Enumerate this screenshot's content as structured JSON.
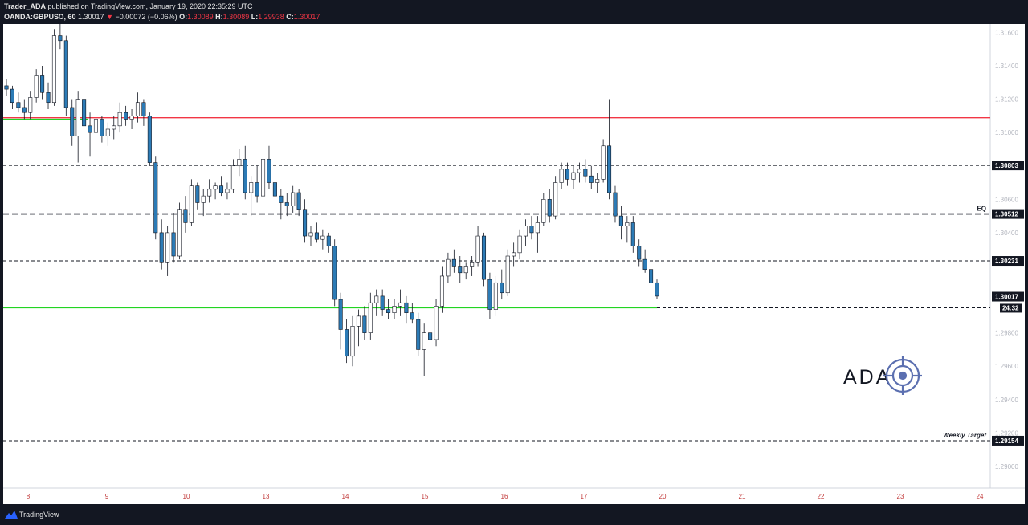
{
  "header": {
    "publisher": "Trader_ADA",
    "published_text": "published on TradingView.com, January 19, 2020 22:35:29 UTC",
    "symbol": "OANDA:GBPUSD, 60",
    "last": "1.30017",
    "arrow": "▼",
    "change": "−0.00072 (−0.06%)",
    "o_label": "O:",
    "o": "1.30089",
    "h_label": "H:",
    "h": "1.30089",
    "l_label": "L:",
    "l": "1.29938",
    "c_label": "C:",
    "c": "1.30017"
  },
  "footer": {
    "brand": "TradingView"
  },
  "logo_text": "ADA",
  "chart_data": {
    "type": "candlestick",
    "symbol": "OANDA:GBPUSD",
    "interval": "60",
    "ylim": [
      1.2887,
      1.3165
    ],
    "y_ticks": [
      1.316,
      1.314,
      1.312,
      1.31,
      1.306,
      1.304,
      1.298,
      1.296,
      1.294,
      1.292,
      1.29
    ],
    "y_tick_labels": [
      "1.31600",
      "1.31400",
      "1.31200",
      "1.31000",
      "1.30600",
      "1.30400",
      "1.29800",
      "1.29600",
      "1.29400",
      "1.29200",
      "1.29000"
    ],
    "x_ticks": [
      "8",
      "9",
      "10",
      "13",
      "14",
      "15",
      "16",
      "17",
      "20",
      "21",
      "22",
      "23",
      "24"
    ],
    "levels": [
      {
        "price": 1.31089,
        "color": "#f23645",
        "style": "solid",
        "label": "",
        "show_label": false
      },
      {
        "price": 1.30803,
        "color": "#131722",
        "style": "dashed",
        "label": "1.30803",
        "show_label": true
      },
      {
        "price": 1.30512,
        "color": "#131722",
        "style": "dashed-bold",
        "label": "1.30512",
        "show_label": true,
        "annotation": "EQ"
      },
      {
        "price": 1.30231,
        "color": "#131722",
        "style": "dashed",
        "label": "1.30231",
        "show_label": true
      },
      {
        "price": 1.29154,
        "color": "#131722",
        "style": "dashed",
        "label": "1.29154",
        "show_label": true,
        "annotation": "Weekly Target"
      }
    ],
    "current_price": {
      "price": 1.30017,
      "label": "1.30017",
      "countdown": "24:32"
    },
    "green_level": 1.2995,
    "candles": [
      [
        1.3128,
        1.3132,
        1.3122,
        1.3126
      ],
      [
        1.3126,
        1.3128,
        1.3114,
        1.3118
      ],
      [
        1.3118,
        1.3124,
        1.3112,
        1.3115
      ],
      [
        1.3115,
        1.312,
        1.3108,
        1.3112
      ],
      [
        1.3112,
        1.3125,
        1.3108,
        1.3121
      ],
      [
        1.3121,
        1.3138,
        1.3118,
        1.3134
      ],
      [
        1.3134,
        1.314,
        1.312,
        1.3124
      ],
      [
        1.3124,
        1.313,
        1.3114,
        1.3118
      ],
      [
        1.3118,
        1.3162,
        1.3116,
        1.3158
      ],
      [
        1.3158,
        1.317,
        1.315,
        1.3155
      ],
      [
        1.3155,
        1.3158,
        1.311,
        1.3115
      ],
      [
        1.3115,
        1.312,
        1.3092,
        1.3098
      ],
      [
        1.3098,
        1.3125,
        1.3082,
        1.312
      ],
      [
        1.312,
        1.3128,
        1.3095,
        1.3104
      ],
      [
        1.3104,
        1.3112,
        1.3086,
        1.31
      ],
      [
        1.31,
        1.3112,
        1.3094,
        1.3108
      ],
      [
        1.3108,
        1.311,
        1.3094,
        1.3098
      ],
      [
        1.3098,
        1.3106,
        1.3092,
        1.3102
      ],
      [
        1.3102,
        1.311,
        1.3096,
        1.3104
      ],
      [
        1.3104,
        1.3118,
        1.31,
        1.3112
      ],
      [
        1.3112,
        1.3116,
        1.3104,
        1.3108
      ],
      [
        1.3108,
        1.3114,
        1.3102,
        1.311
      ],
      [
        1.311,
        1.3124,
        1.3106,
        1.3118
      ],
      [
        1.3118,
        1.312,
        1.3104,
        1.311
      ],
      [
        1.311,
        1.3112,
        1.308,
        1.3082
      ],
      [
        1.3082,
        1.3086,
        1.3036,
        1.304
      ],
      [
        1.304,
        1.3048,
        1.3018,
        1.3022
      ],
      [
        1.3022,
        1.3044,
        1.3014,
        1.304
      ],
      [
        1.304,
        1.3052,
        1.3022,
        1.3026
      ],
      [
        1.3026,
        1.3058,
        1.3024,
        1.3054
      ],
      [
        1.3054,
        1.3062,
        1.304,
        1.3046
      ],
      [
        1.3046,
        1.3072,
        1.3044,
        1.3068
      ],
      [
        1.3068,
        1.307,
        1.3054,
        1.3058
      ],
      [
        1.3058,
        1.3066,
        1.305,
        1.3062
      ],
      [
        1.3062,
        1.3072,
        1.3058,
        1.3066
      ],
      [
        1.3066,
        1.307,
        1.306,
        1.3068
      ],
      [
        1.3068,
        1.3074,
        1.3062,
        1.3064
      ],
      [
        1.3064,
        1.307,
        1.306,
        1.3066
      ],
      [
        1.3066,
        1.3084,
        1.3064,
        1.308
      ],
      [
        1.308,
        1.309,
        1.3074,
        1.3084
      ],
      [
        1.3084,
        1.3092,
        1.306,
        1.3064
      ],
      [
        1.3064,
        1.3074,
        1.305,
        1.307
      ],
      [
        1.307,
        1.308,
        1.3058,
        1.3062
      ],
      [
        1.3062,
        1.309,
        1.3058,
        1.3084
      ],
      [
        1.3084,
        1.3092,
        1.3066,
        1.307
      ],
      [
        1.307,
        1.3076,
        1.3056,
        1.3062
      ],
      [
        1.3062,
        1.3066,
        1.3048,
        1.3058
      ],
      [
        1.3058,
        1.3064,
        1.305,
        1.3056
      ],
      [
        1.3056,
        1.3068,
        1.3052,
        1.3064
      ],
      [
        1.3064,
        1.3066,
        1.305,
        1.3054
      ],
      [
        1.3054,
        1.306,
        1.3034,
        1.3038
      ],
      [
        1.3038,
        1.3044,
        1.3032,
        1.304
      ],
      [
        1.304,
        1.3046,
        1.3034,
        1.3036
      ],
      [
        1.3036,
        1.3042,
        1.303,
        1.3038
      ],
      [
        1.3038,
        1.304,
        1.3028,
        1.3032
      ],
      [
        1.3032,
        1.3036,
        1.2996,
        1.3
      ],
      [
        1.3,
        1.3004,
        1.297,
        1.2982
      ],
      [
        1.2982,
        1.2988,
        1.2962,
        1.2966
      ],
      [
        1.2966,
        1.299,
        1.296,
        1.2984
      ],
      [
        1.2984,
        1.2994,
        1.2972,
        1.299
      ],
      [
        1.299,
        1.2996,
        1.2976,
        1.298
      ],
      [
        1.298,
        1.3004,
        1.2976,
        1.2998
      ],
      [
        1.2998,
        1.3006,
        1.299,
        1.3002
      ],
      [
        1.3002,
        1.3006,
        1.299,
        1.2994
      ],
      [
        1.2994,
        1.3,
        1.2988,
        1.2992
      ],
      [
        1.2992,
        1.3,
        1.2988,
        1.2996
      ],
      [
        1.2996,
        1.3006,
        1.299,
        1.2998
      ],
      [
        1.2998,
        1.3002,
        1.2986,
        1.2992
      ],
      [
        1.2992,
        1.2998,
        1.2986,
        1.2988
      ],
      [
        1.2988,
        1.2992,
        1.2966,
        1.297
      ],
      [
        1.297,
        1.2986,
        1.2954,
        1.298
      ],
      [
        1.298,
        1.2986,
        1.2972,
        1.2976
      ],
      [
        1.2976,
        1.3,
        1.2972,
        1.2996
      ],
      [
        1.2996,
        1.302,
        1.2992,
        1.3014
      ],
      [
        1.3014,
        1.3028,
        1.301,
        1.3024
      ],
      [
        1.3024,
        1.303,
        1.3016,
        1.302
      ],
      [
        1.302,
        1.3026,
        1.301,
        1.3016
      ],
      [
        1.3016,
        1.3022,
        1.3012,
        1.302
      ],
      [
        1.302,
        1.3026,
        1.3014,
        1.3022
      ],
      [
        1.3022,
        1.3044,
        1.302,
        1.3038
      ],
      [
        1.3038,
        1.304,
        1.3008,
        1.3012
      ],
      [
        1.3012,
        1.3016,
        1.2988,
        1.2994
      ],
      [
        1.2994,
        1.3014,
        1.299,
        1.301
      ],
      [
        1.301,
        1.3018,
        1.3,
        1.3004
      ],
      [
        1.3004,
        1.303,
        1.3002,
        1.3026
      ],
      [
        1.3026,
        1.3034,
        1.302,
        1.3028
      ],
      [
        1.3028,
        1.3042,
        1.3024,
        1.3038
      ],
      [
        1.3038,
        1.3048,
        1.3032,
        1.3044
      ],
      [
        1.3044,
        1.305,
        1.3036,
        1.304
      ],
      [
        1.304,
        1.305,
        1.3028,
        1.3046
      ],
      [
        1.3046,
        1.3064,
        1.3044,
        1.306
      ],
      [
        1.306,
        1.3066,
        1.3046,
        1.305
      ],
      [
        1.305,
        1.3074,
        1.3048,
        1.307
      ],
      [
        1.307,
        1.3082,
        1.3066,
        1.3078
      ],
      [
        1.3078,
        1.3082,
        1.3068,
        1.3072
      ],
      [
        1.3072,
        1.308,
        1.3066,
        1.3076
      ],
      [
        1.3076,
        1.3082,
        1.307,
        1.3078
      ],
      [
        1.3078,
        1.3084,
        1.307,
        1.3074
      ],
      [
        1.3074,
        1.308,
        1.3066,
        1.307
      ],
      [
        1.307,
        1.3076,
        1.3064,
        1.3072
      ],
      [
        1.3072,
        1.3096,
        1.307,
        1.3092
      ],
      [
        1.3092,
        1.312,
        1.306,
        1.3064
      ],
      [
        1.3064,
        1.3068,
        1.3046,
        1.305
      ],
      [
        1.305,
        1.3056,
        1.3036,
        1.3044
      ],
      [
        1.3044,
        1.305,
        1.3034,
        1.3046
      ],
      [
        1.3046,
        1.305,
        1.3028,
        1.3032
      ],
      [
        1.3032,
        1.3036,
        1.302,
        1.3024
      ],
      [
        1.3024,
        1.303,
        1.3016,
        1.3018
      ],
      [
        1.3018,
        1.3022,
        1.3006,
        1.301
      ],
      [
        1.301,
        1.3012,
        1.3,
        1.3002
      ]
    ]
  }
}
